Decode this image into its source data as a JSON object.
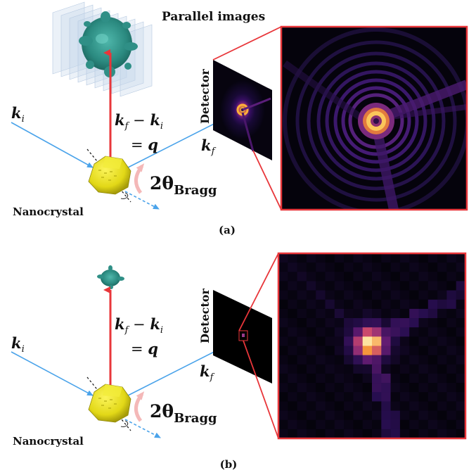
{
  "panel_a": {
    "parallel_images_label": "Parallel images",
    "ki_label": "k",
    "ki_sub": "i",
    "eq_line1_a": "k",
    "eq_line1_a_sub": "f",
    "eq_line1_minus": " − ",
    "eq_line1_b": "k",
    "eq_line1_b_sub": "i",
    "eq_line2_eq": "= ",
    "eq_line2_q": "q",
    "kf_label": "k",
    "kf_sub": "f",
    "bragg_label": "2θ",
    "bragg_sub": "Bragg",
    "detector_label": "Detector",
    "nanocrystal_label": "Nanocrystal",
    "caption": "(a)"
  },
  "panel_b": {
    "ki_label": "k",
    "ki_sub": "i",
    "eq_line1_a": "k",
    "eq_line1_a_sub": "f",
    "eq_line1_minus": " − ",
    "eq_line1_b": "k",
    "eq_line1_b_sub": "i",
    "eq_line2_eq": "= ",
    "eq_line2_q": "q",
    "kf_label": "k",
    "kf_sub": "f",
    "bragg_label": "2θ",
    "bragg_sub": "Bragg",
    "detector_label": "Detector",
    "nanocrystal_label": "Nanocrystal",
    "caption": "(b)"
  },
  "colors": {
    "beam_blue": "#4aa3ea",
    "q_red": "#e8363a",
    "zoom_red": "#e8363a",
    "crystal_yellow": "#e8e020",
    "iso_teal": "#2f8f86",
    "bragg_arrow": "#f4b8b8"
  }
}
